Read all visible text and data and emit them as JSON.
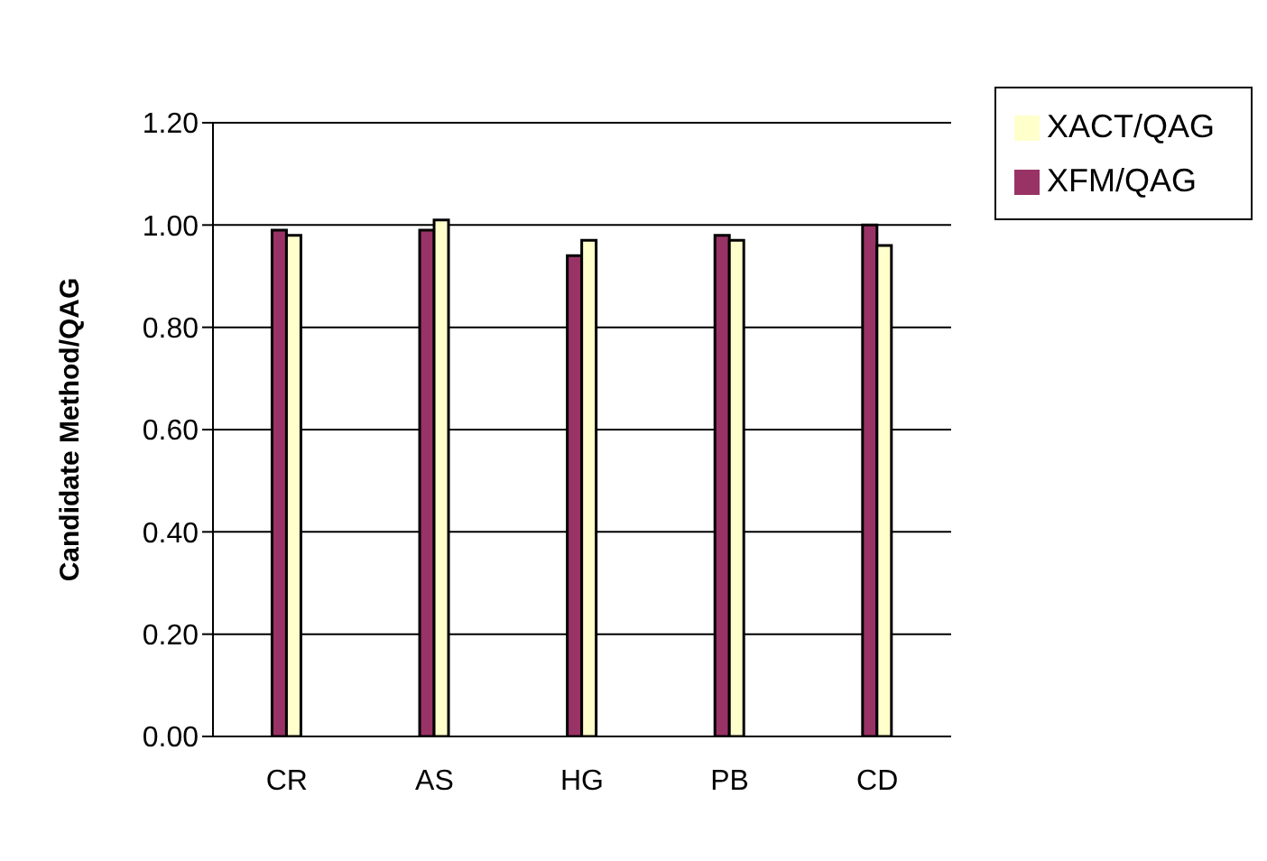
{
  "chart_data": {
    "type": "bar",
    "ylabel": "Candidate Method/QAG",
    "categories": [
      "CR",
      "AS",
      "HG",
      "PB",
      "CD"
    ],
    "series": [
      {
        "name": "XFM/QAG",
        "color": "#993366",
        "values": [
          0.99,
          0.99,
          0.94,
          0.98,
          1.0
        ]
      },
      {
        "name": "XACT/QAG",
        "color": "#ffffcc",
        "values": [
          0.98,
          1.01,
          0.97,
          0.97,
          0.96
        ]
      }
    ],
    "ylim": [
      0,
      1.2
    ],
    "yticks": [
      {
        "value": 0,
        "label": "0.00"
      },
      {
        "value": 0.2,
        "label": "0.20"
      },
      {
        "value": 0.4,
        "label": "0.40"
      },
      {
        "value": 0.6,
        "label": "0.60"
      },
      {
        "value": 0.8,
        "label": "0.80"
      },
      {
        "value": 1,
        "label": "1.00"
      },
      {
        "value": 1.2,
        "label": "1.20"
      }
    ],
    "grid": "y",
    "legend": "top right"
  }
}
